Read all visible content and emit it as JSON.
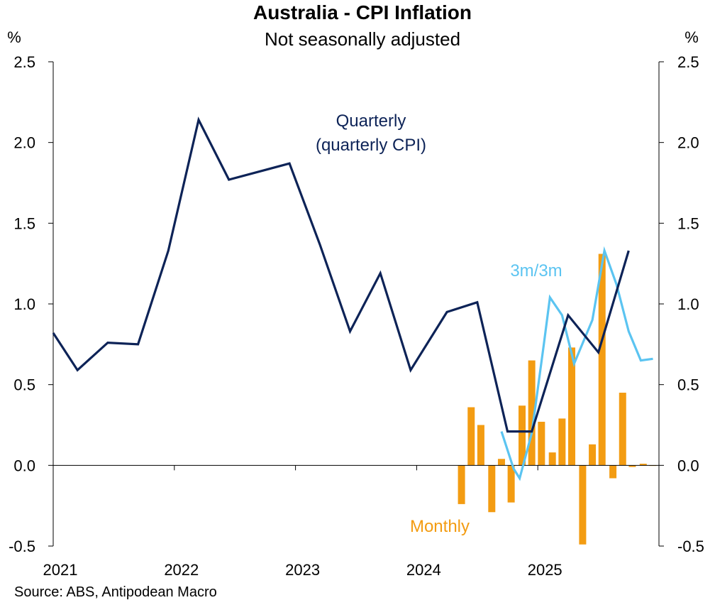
{
  "chart_data": {
    "type": "bar+line",
    "title": "Australia - CPI Inflation",
    "subtitle": "Not seasonally adjusted",
    "y_unit_left": "%",
    "y_unit_right": "%",
    "ylim": [
      -0.5,
      2.5
    ],
    "yticks": [
      "2.5",
      "2.0",
      "1.5",
      "1.0",
      "0.5",
      "0.0",
      "-0.5"
    ],
    "ytick_values": [
      2.5,
      2.0,
      1.5,
      1.0,
      0.5,
      0.0,
      -0.5
    ],
    "x_range": [
      2021.0,
      2026.0
    ],
    "xticks": [
      "2021",
      "2022",
      "2023",
      "2024",
      "2025"
    ],
    "xtick_values": [
      2021.0,
      2022.0,
      2023.0,
      2024.0,
      2025.0
    ],
    "source": "Source: ABS, Antipodean Macro",
    "colors": {
      "quarterly": "#0d2357",
      "three_month": "#5bc4f1",
      "monthly": "#f39c12",
      "axis": "#000000"
    },
    "annotations": {
      "quarterly_line1": "Quarterly",
      "quarterly_line2": "(quarterly CPI)",
      "three_month": "3m/3m",
      "monthly": "Monthly"
    },
    "series": [
      {
        "name": "Quarterly (quarterly CPI)",
        "type": "line",
        "x": [
          2021.0,
          2021.2,
          2021.45,
          2021.7,
          2021.95,
          2022.2,
          2022.45,
          2022.95,
          2023.2,
          2023.45,
          2023.7,
          2023.95,
          2024.25,
          2024.5,
          2024.75,
          2024.95,
          2025.25,
          2025.5,
          2025.75
        ],
        "values": [
          0.82,
          0.59,
          0.76,
          0.75,
          1.33,
          2.14,
          1.77,
          1.87,
          1.37,
          0.83,
          1.19,
          0.59,
          0.95,
          1.01,
          0.21,
          0.21,
          0.93,
          0.7,
          1.33
        ]
      },
      {
        "name": "3m/3m",
        "type": "line",
        "x": [
          2024.7,
          2024.8,
          2024.85,
          2024.95,
          2025.05,
          2025.1,
          2025.2,
          2025.3,
          2025.45,
          2025.55,
          2025.65,
          2025.75,
          2025.85,
          2025.95
        ],
        "values": [
          0.21,
          -0.02,
          -0.08,
          0.2,
          0.75,
          1.04,
          0.93,
          0.63,
          0.9,
          1.33,
          1.12,
          0.83,
          0.65,
          0.66
        ]
      },
      {
        "name": "Monthly",
        "type": "bar",
        "x": [
          2024.37,
          2024.45,
          2024.53,
          2024.62,
          2024.7,
          2024.78,
          2024.87,
          2024.95,
          2025.03,
          2025.12,
          2025.2,
          2025.28,
          2025.37,
          2025.45,
          2025.53,
          2025.62,
          2025.7,
          2025.78,
          2025.87,
          2025.95
        ],
        "values": [
          -0.24,
          0.36,
          0.25,
          -0.29,
          0.04,
          -0.23,
          0.37,
          0.65,
          0.27,
          0.08,
          0.29,
          0.73,
          -0.49,
          0.13,
          1.31,
          -0.08,
          0.45,
          -0.01,
          0.01,
          0.0
        ]
      }
    ]
  }
}
